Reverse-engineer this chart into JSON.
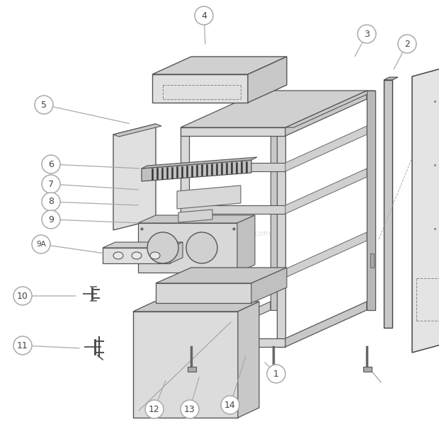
{
  "bg_color": "#ffffff",
  "lc": "#555555",
  "lc2": "#888888",
  "watermark": "ereplacementparts.com",
  "circle_r": 13,
  "labels": [
    [
      "1",
      390,
      528,
      372,
      510
    ],
    [
      "2",
      575,
      62,
      555,
      100
    ],
    [
      "3",
      518,
      48,
      500,
      82
    ],
    [
      "4",
      288,
      22,
      290,
      65
    ],
    [
      "5",
      62,
      148,
      185,
      175
    ],
    [
      "6",
      72,
      232,
      200,
      238
    ],
    [
      "7",
      72,
      260,
      198,
      268
    ],
    [
      "8",
      72,
      285,
      198,
      290
    ],
    [
      "9",
      72,
      310,
      198,
      315
    ],
    [
      "9A",
      58,
      345,
      148,
      358
    ],
    [
      "10",
      32,
      418,
      110,
      418
    ],
    [
      "11",
      32,
      488,
      115,
      492
    ],
    [
      "12",
      218,
      578,
      235,
      535
    ],
    [
      "13",
      268,
      578,
      282,
      530
    ],
    [
      "14",
      325,
      572,
      348,
      500
    ]
  ]
}
